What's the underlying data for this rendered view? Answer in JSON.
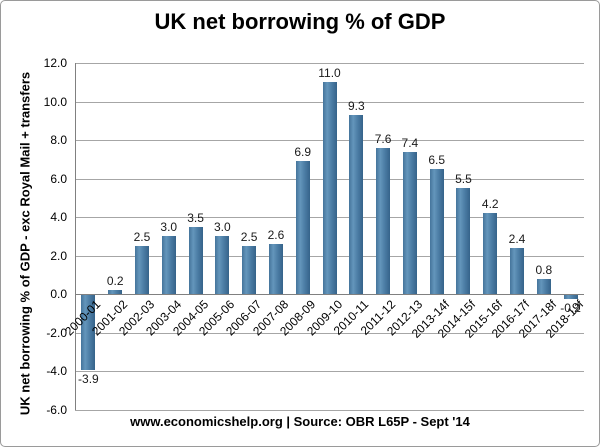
{
  "figure": {
    "title": "UK net borrowing % of GDP",
    "footer": "www.economicshelp.org | Source: OBR L65P - Sept '14"
  },
  "chart_data": {
    "type": "bar",
    "title": "UK net borrowing % of GDP",
    "xlabel": "",
    "ylabel": "UK net borrowing % of GDP - exc Royal Mail + transfers",
    "categories": [
      "2000-01",
      "2001-02",
      "2002-03",
      "2003-04",
      "2004-05",
      "2005-06",
      "2006-07",
      "2007-08",
      "2008-09",
      "2009-10",
      "2010-11",
      "2011-12",
      "2012-13",
      "2013-14f",
      "2014-15f",
      "2015-16f",
      "2016-17f",
      "2017-18f",
      "2018-19f"
    ],
    "values": [
      -3.9,
      0.2,
      2.5,
      3.0,
      3.5,
      3.0,
      2.5,
      2.6,
      6.9,
      11.0,
      9.3,
      7.6,
      7.4,
      6.5,
      5.5,
      4.2,
      2.4,
      0.8,
      -0.2
    ],
    "value_labels": [
      "-3.9",
      "0.2",
      "2.5",
      "3.0",
      "3.5",
      "3.0",
      "2.5",
      "2.6",
      "6.9",
      "11.0",
      "9.3",
      "7.6",
      "7.4",
      "6.5",
      "5.5",
      "4.2",
      "2.4",
      "0.8",
      "-0.2"
    ],
    "ylim": [
      -6.0,
      12.0
    ],
    "ytick_interval": 2.0,
    "ytick_labels": [
      "12.0",
      "10.0",
      "8.0",
      "6.0",
      "4.0",
      "2.0",
      "0.0",
      "-2.0",
      "-4.0",
      "-6.0"
    ],
    "grid": true,
    "legend": false,
    "bar_color": "#4d7ea6",
    "bar_gradient": [
      "#44749b",
      "#6496bb",
      "#4d7ea6",
      "#35638a"
    ],
    "gridline_color": "#a6a6a6",
    "axis_color": "#808080",
    "footer": "www.economicshelp.org | Source: OBR L65P - Sept '14"
  }
}
